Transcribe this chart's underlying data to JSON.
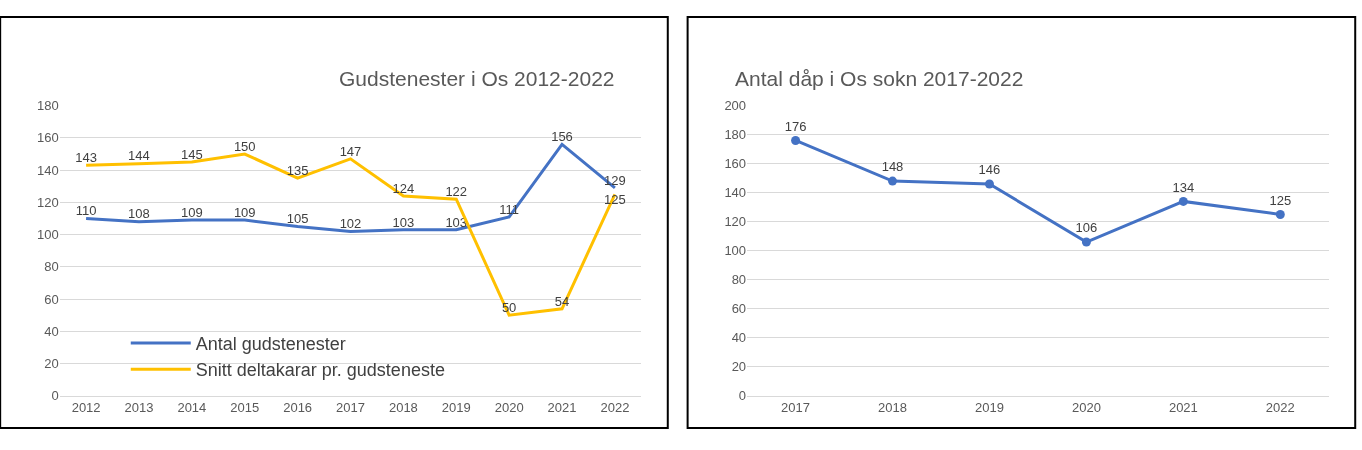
{
  "chart_data": [
    {
      "type": "line",
      "title": "Gudstenester i Os 2012-2022",
      "categories": [
        "2012",
        "2013",
        "2014",
        "2015",
        "2016",
        "2017",
        "2018",
        "2019",
        "2020",
        "2021",
        "2022"
      ],
      "series": [
        {
          "name": "Antal gudstenester",
          "color": "#4472c4",
          "values": [
            110,
            108,
            109,
            109,
            105,
            102,
            103,
            103,
            111,
            156,
            129
          ]
        },
        {
          "name": "Snitt deltakarar pr. gudsteneste",
          "color": "#ffc000",
          "values": [
            143,
            144,
            145,
            150,
            135,
            147,
            124,
            122,
            50,
            54,
            125
          ]
        }
      ],
      "ylim": [
        0,
        180
      ],
      "yticks": [
        0,
        20,
        40,
        60,
        80,
        100,
        120,
        140,
        160,
        180
      ],
      "grid": "y",
      "legend": "bottom left",
      "data_labels": true,
      "marker": "none",
      "line_style": "solid"
    },
    {
      "type": "line",
      "title": "Antal dåp i Os sokn 2017-2022",
      "categories": [
        "2017",
        "2018",
        "2019",
        "2020",
        "2021",
        "2022"
      ],
      "series": [
        {
          "color": "#4472c4",
          "values": [
            176,
            148,
            146,
            106,
            134,
            125
          ]
        }
      ],
      "ylim": [
        0,
        200
      ],
      "yticks": [
        0,
        20,
        40,
        60,
        80,
        100,
        120,
        140,
        160,
        180,
        200
      ],
      "grid": "y",
      "legend": false,
      "data_labels": true,
      "marker": "circle",
      "line_style": "solid"
    }
  ]
}
